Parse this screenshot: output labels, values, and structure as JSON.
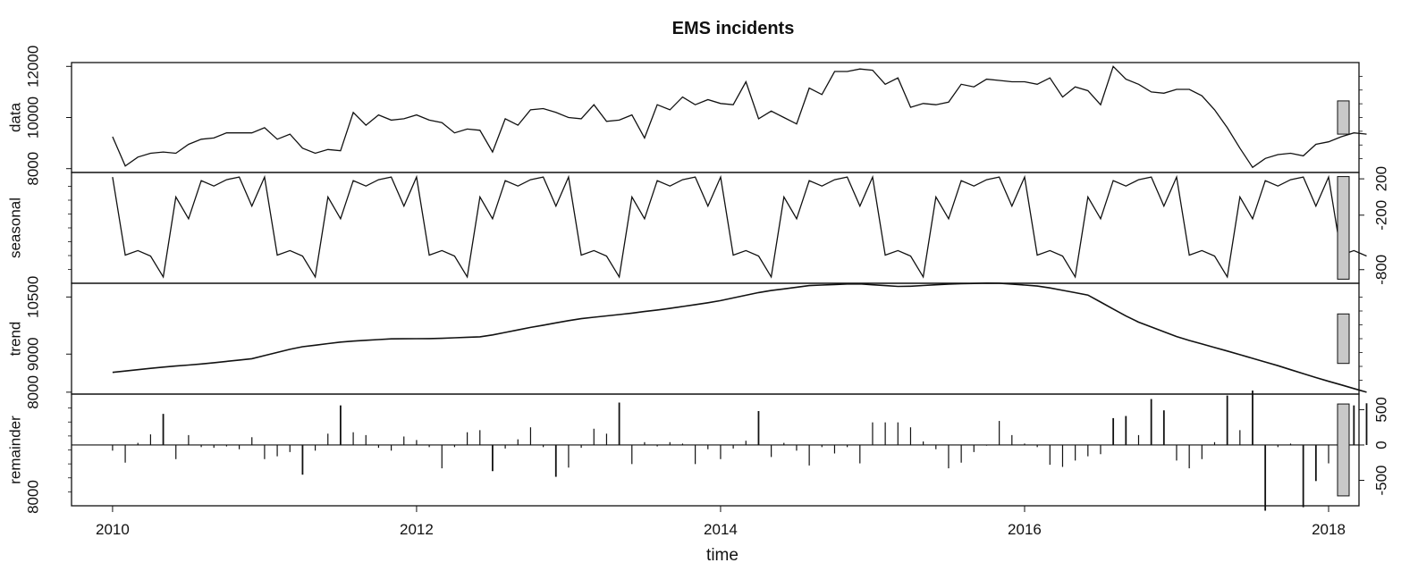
{
  "chart_data": {
    "type": "line",
    "title": "EMS incidents",
    "xlabel": "time",
    "xlim": [
      2009.73,
      2018.2
    ],
    "x_ticks": [
      "2010",
      "2012",
      "2014",
      "2016",
      "2018"
    ],
    "x_tick_values": [
      2010,
      2012,
      2014,
      2016,
      2018
    ],
    "start": 2010.0,
    "frequency": 12,
    "panels": [
      {
        "name": "data",
        "type": "line",
        "ylim": [
          7850,
          12150
        ],
        "y_ticks": [
          "8000",
          "10000",
          "12000"
        ],
        "y_tick_values": [
          8000,
          10000,
          12000
        ],
        "tick_side": "left",
        "scale_bar_height": 1300,
        "values": [
          9250,
          8100,
          8450,
          8600,
          8650,
          8600,
          8950,
          9150,
          9200,
          9400,
          9400,
          9400,
          9600,
          9150,
          9350,
          8800,
          8600,
          8750,
          8700,
          10200,
          9700,
          10100,
          9900,
          9950,
          10100,
          9900,
          9800,
          9400,
          9550,
          9500,
          8650,
          9950,
          9700,
          10300,
          10350,
          10200,
          10000,
          9950,
          10500,
          9850,
          9900,
          10100,
          9200,
          10500,
          10300,
          10800,
          10500,
          10700,
          10550,
          10500,
          11400,
          9950,
          10250,
          10000,
          9750,
          11150,
          10900,
          11800,
          11800,
          11900,
          11850,
          11300,
          11550,
          10400,
          10550,
          10500,
          10600,
          11300,
          11200,
          11500,
          11450,
          11400,
          11400,
          11300,
          11550,
          10800,
          11200,
          11050,
          10500,
          12000,
          11500,
          11300,
          11000,
          10950,
          11100,
          11100,
          10850,
          10300,
          9600,
          8800,
          8050,
          8400,
          8550,
          8600,
          8500,
          8950,
          9050,
          9250,
          9400,
          9350
        ]
      },
      {
        "name": "seasonal",
        "type": "line",
        "ylim": [
          -950,
          270
        ],
        "y_ticks": [
          "200",
          "-200",
          "-800"
        ],
        "y_tick_values": [
          200,
          -200,
          -800
        ],
        "tick_side": "right",
        "scale_bar_height": 1130,
        "values": [
          220,
          -640,
          -590,
          -650,
          -880,
          0,
          -240,
          180,
          120,
          190,
          220,
          -100,
          160
        ]
      },
      {
        "name": "trend",
        "type": "line",
        "ylim": [
          7950,
          10860
        ],
        "y_ticks": [
          "8000",
          "9000",
          "10500"
        ],
        "y_tick_values": [
          8000,
          9000,
          10500
        ],
        "tick_side": "left",
        "scale_bar_height": 1300,
        "values": [
          8520,
          8650,
          8750,
          8880,
          9180,
          9330,
          9400,
          9410,
          9460,
          9700,
          9920,
          10050,
          10200,
          10380,
          10640,
          10800,
          10850,
          10770,
          10840,
          10870,
          10780,
          10550,
          9880,
          9420,
          9080,
          8730,
          8350,
          8000
        ]
      },
      {
        "name": "remainder",
        "type": "bars",
        "ylim": [
          -860,
          720
        ],
        "y_ticks": [
          "500",
          "0",
          "-500"
        ],
        "y_tick_values": [
          500,
          0,
          -500
        ],
        "tick_side": "right",
        "label_ticks": [
          "8000"
        ],
        "scale_bar_height": 1300,
        "values": [
          -80,
          -250,
          30,
          150,
          440,
          -200,
          140,
          -30,
          -40,
          -20,
          -60,
          110,
          -200,
          -160,
          -100,
          -420,
          -80,
          160,
          560,
          180,
          140,
          -40,
          -80,
          120,
          70,
          -30,
          -330,
          -30,
          180,
          210,
          -370,
          -50,
          80,
          250,
          -30,
          -450,
          -320,
          -40,
          230,
          160,
          600,
          -270,
          40,
          -20,
          40,
          20,
          -270,
          -60,
          -200,
          -50,
          60,
          480,
          -170,
          30,
          -80,
          -290,
          -30,
          -120,
          -30,
          -260,
          320,
          320,
          320,
          250,
          50,
          -60,
          -330,
          -250,
          -100,
          -10,
          340,
          140,
          20,
          -30,
          -280,
          -310,
          -220,
          -160,
          -130,
          380,
          410,
          140,
          650,
          490,
          -220,
          -330,
          -200,
          40,
          700,
          210,
          770,
          -930,
          -30,
          20,
          -880,
          -510,
          -260,
          120,
          560,
          590
        ]
      }
    ]
  }
}
